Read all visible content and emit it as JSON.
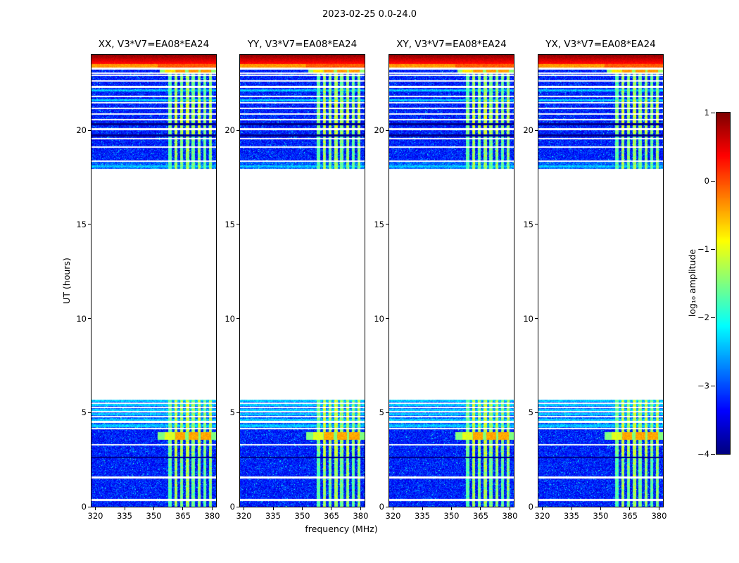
{
  "figure": {
    "title": "2023-02-25 0.0-24.0",
    "xlabel": "frequency (MHz)",
    "ylabel": "UT (hours)",
    "colorbar_label": "log₁₀ amplitude"
  },
  "chart_data": {
    "type": "heatmap",
    "title": "2023-02-25 0.0-24.0",
    "colormap": "jet",
    "panels": [
      {
        "title": "XX, V3*V7=EA08*EA24",
        "polarization": "XX",
        "baseline": "V3*V7=EA08*EA24"
      },
      {
        "title": "YY, V3*V7=EA08*EA24",
        "polarization": "YY",
        "baseline": "V3*V7=EA08*EA24"
      },
      {
        "title": "XY, V3*V7=EA08*EA24",
        "polarization": "XY",
        "baseline": "V3*V7=EA08*EA24"
      },
      {
        "title": "YX, V3*V7=EA08*EA24",
        "polarization": "YX",
        "baseline": "V3*V7=EA08*EA24"
      }
    ],
    "x_axis": {
      "label": "frequency (MHz)",
      "range": [
        318,
        382
      ],
      "ticks": [
        320,
        335,
        350,
        365,
        380
      ],
      "tick_labels": [
        "320",
        "335",
        "350",
        "365",
        "380"
      ]
    },
    "y_axis": {
      "label": "UT (hours)",
      "range": [
        0,
        24
      ],
      "ticks": [
        0,
        5,
        10,
        15,
        20
      ],
      "tick_labels": [
        "0",
        "5",
        "10",
        "15",
        "20"
      ]
    },
    "colorbar": {
      "label": "log₁₀ amplitude",
      "range": [
        -4,
        1
      ],
      "tick_values": [
        1,
        0,
        -1,
        -2,
        -3,
        -4
      ],
      "tick_labels": [
        "1",
        "0",
        "−1",
        "−2",
        "−3",
        "−4"
      ]
    },
    "data_blocks": [
      {
        "t": [
          0.0,
          5.7
        ]
      },
      {
        "t": [
          17.95,
          24.0
        ]
      }
    ],
    "gap": {
      "t": [
        5.7,
        17.95
      ]
    },
    "noise": {
      "base_level": -3.65,
      "spread": 0.8,
      "speckle_prob": 0.04,
      "speckle_boost": 0.6
    },
    "elevated_bands": [
      {
        "t": [
          4.2,
          5.65
        ],
        "boost": 0.3
      },
      {
        "t": [
          17.95,
          18.3
        ],
        "boost": 0.35
      }
    ],
    "rfi_comb": {
      "f_start": 357.5,
      "f_end": 380,
      "period_mhz": 3,
      "width_mhz": 1.6,
      "base_level": -2.6,
      "strengths": [
        0.7,
        1.0,
        0.85,
        1.0,
        0.8,
        0.95,
        0.75,
        0.9
      ],
      "boosts": [
        {
          "t": [
            2.7,
            5.65
          ],
          "factor": 1.2
        },
        {
          "t": [
            19.8,
            21.6
          ],
          "factor": 1.25
        }
      ]
    },
    "white_lines": [
      0.35,
      1.55,
      3.3,
      4.15,
      4.5,
      4.78,
      5.05,
      5.28,
      5.5,
      18.35,
      19.1,
      19.55,
      20.05,
      20.55,
      20.85,
      21.15,
      21.45,
      21.8,
      22.3,
      22.62,
      22.92,
      23.02,
      23.27
    ],
    "cyan_rows": [
      4.3,
      4.62,
      4.92,
      5.15,
      5.4,
      5.62,
      18.08,
      21.6,
      22.12
    ],
    "dark_lines": [
      2.62,
      19.72,
      20.32
    ],
    "bright_block": {
      "t": [
        3.55,
        3.98
      ],
      "blocks": [
        {
          "f": [
            355.5,
            360.5
          ],
          "w": 0.55
        },
        {
          "f": [
            361.0,
            366.2
          ],
          "w": 1.0
        },
        {
          "f": [
            367.8,
            372.8
          ],
          "w": 1.0
        },
        {
          "f": [
            374.2,
            379.6
          ],
          "w": 1.0
        }
      ]
    },
    "top_bands": {
      "solid_red": {
        "t": [
          23.5,
          24.0
        ],
        "level": [
          0.15,
          0.85
        ]
      },
      "orange_row": {
        "t": [
          23.3,
          23.5
        ],
        "level_left": -0.55,
        "level_right": -0.25,
        "f_split": 352
      },
      "yellow_comb": {
        "t": [
          23.05,
          23.3
        ],
        "f_min": 353,
        "level": -0.55
      }
    }
  }
}
